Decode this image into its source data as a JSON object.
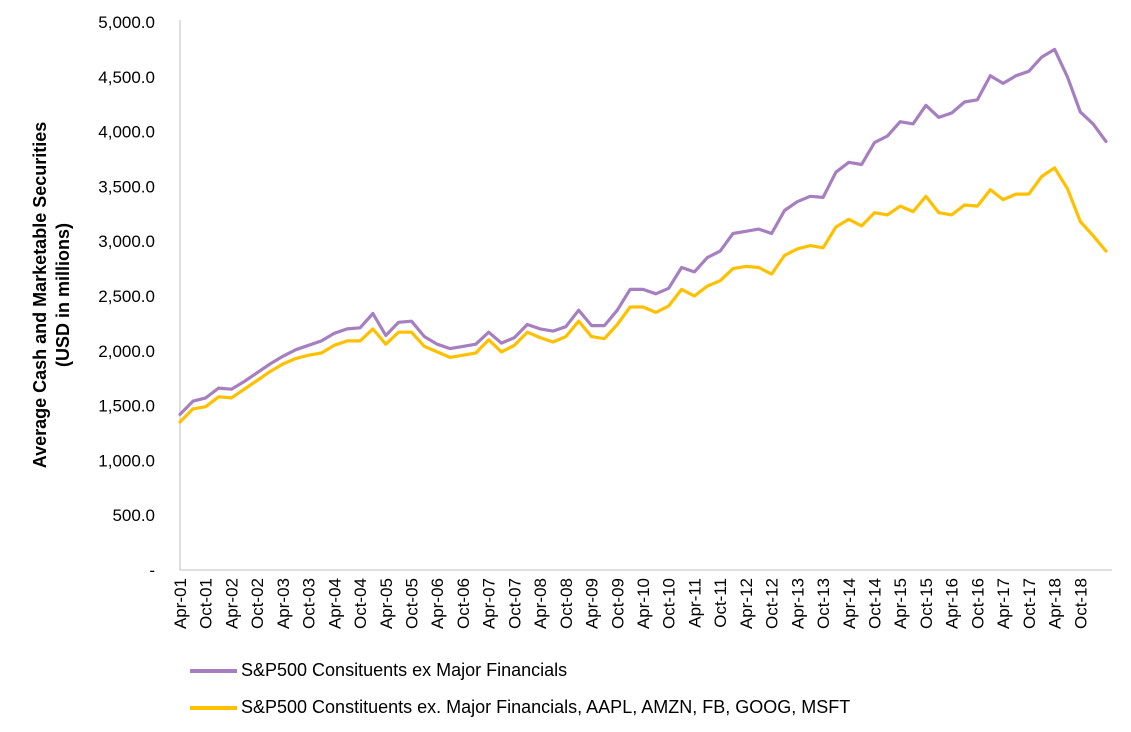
{
  "chart_data": {
    "type": "line",
    "ylabel": [
      "Average Cash and Marketable Securities",
      "(USD in millions)"
    ],
    "ylim": [
      0,
      5000
    ],
    "yticks": [
      0,
      500,
      1000,
      1500,
      2000,
      2500,
      3000,
      3500,
      4000,
      4500,
      5000
    ],
    "ytick_labels": [
      "-",
      "500.0",
      "1,000.0",
      "1,500.0",
      "2,000.0",
      "2,500.0",
      "3,000.0",
      "3,500.0",
      "4,000.0",
      "4,500.0",
      "5,000.0"
    ],
    "x_tick_labels": [
      "Apr-01",
      "Oct-01",
      "Apr-02",
      "Oct-02",
      "Apr-03",
      "Oct-03",
      "Apr-04",
      "Oct-04",
      "Apr-05",
      "Oct-05",
      "Apr-06",
      "Oct-06",
      "Apr-07",
      "Oct-07",
      "Apr-08",
      "Oct-08",
      "Apr-09",
      "Oct-09",
      "Apr-10",
      "Oct-10",
      "Apr-11",
      "Oct-11",
      "Apr-12",
      "Oct-12",
      "Apr-13",
      "Oct-13",
      "Apr-14",
      "Oct-14",
      "Apr-15",
      "Oct-15",
      "Apr-16",
      "Oct-16",
      "Apr-17",
      "Oct-17",
      "Apr-18",
      "Oct-18"
    ],
    "x_start": "2001-04",
    "x_step_months": 3,
    "grid": false,
    "legend_position": "bottom",
    "series": [
      {
        "name": "S&P500 Consituents ex Major Financials",
        "color": "#a67fc0",
        "values": [
          1420,
          1540,
          1570,
          1660,
          1650,
          1720,
          1800,
          1880,
          1950,
          2010,
          2050,
          2090,
          2160,
          2200,
          2210,
          2340,
          2140,
          2260,
          2270,
          2130,
          2060,
          2020,
          2040,
          2060,
          2170,
          2070,
          2120,
          2240,
          2200,
          2180,
          2220,
          2370,
          2230,
          2230,
          2370,
          2560,
          2560,
          2520,
          2570,
          2760,
          2720,
          2850,
          2910,
          3070,
          3090,
          3110,
          3070,
          3280,
          3360,
          3410,
          3400,
          3630,
          3720,
          3700,
          3900,
          3960,
          4090,
          4070,
          4240,
          4130,
          4170,
          4270,
          4290,
          4510,
          4440,
          4510,
          4550,
          4680,
          4750,
          4500,
          4180,
          4070,
          3910
        ]
      },
      {
        "name": "S&P500 Constituents ex. Major Financials, AAPL, AMZN, FB, GOOG, MSFT",
        "color": "#ffc000",
        "values": [
          1350,
          1470,
          1490,
          1580,
          1570,
          1650,
          1730,
          1810,
          1880,
          1930,
          1960,
          1980,
          2050,
          2090,
          2090,
          2200,
          2060,
          2170,
          2170,
          2040,
          1990,
          1940,
          1960,
          1980,
          2100,
          1990,
          2050,
          2170,
          2120,
          2080,
          2130,
          2270,
          2130,
          2110,
          2240,
          2400,
          2400,
          2350,
          2410,
          2560,
          2500,
          2590,
          2640,
          2750,
          2770,
          2760,
          2700,
          2870,
          2930,
          2960,
          2940,
          3130,
          3200,
          3140,
          3260,
          3240,
          3320,
          3270,
          3410,
          3260,
          3240,
          3330,
          3320,
          3470,
          3380,
          3430,
          3430,
          3590,
          3670,
          3480,
          3180,
          3050,
          2910
        ]
      }
    ]
  }
}
